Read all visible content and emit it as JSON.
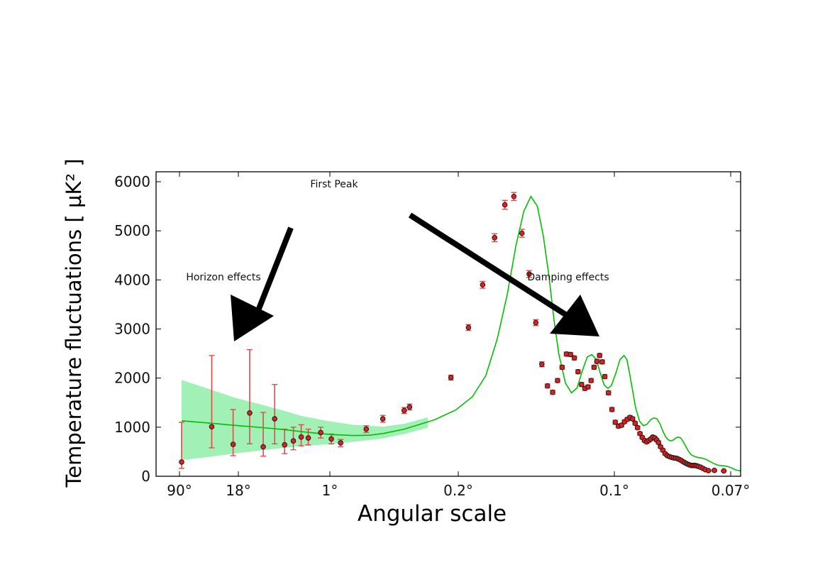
{
  "chart_data": {
    "type": "scatter",
    "xlabel": "Angular scale",
    "ylabel": "Temperature fluctuations [ μK² ]",
    "ylim": [
      0,
      6200
    ],
    "y_ticks": [
      "0",
      "1000",
      "2000",
      "3000",
      "4000",
      "5000",
      "6000"
    ],
    "x_ticks": [
      "90°",
      "18°",
      "1°",
      "0.2°",
      "0.1°",
      "0.07°"
    ],
    "x_scale": "log (multipole, labeled by angular scale)",
    "grid": false,
    "annotations": [
      {
        "text": "First Peak"
      },
      {
        "text": "Horizon effects"
      },
      {
        "text": "Damping effects"
      }
    ],
    "series": [
      {
        "kind": "model_curve",
        "color": "#00c000",
        "points": [
          [
            2,
            1130
          ],
          [
            3,
            1080
          ],
          [
            4,
            1040
          ],
          [
            6,
            990
          ],
          [
            8,
            950
          ],
          [
            10,
            910
          ],
          [
            12,
            880
          ],
          [
            15,
            850
          ],
          [
            20,
            830
          ],
          [
            25,
            835
          ],
          [
            30,
            870
          ],
          [
            40,
            960
          ],
          [
            60,
            1150
          ],
          [
            80,
            1350
          ],
          [
            100,
            1620
          ],
          [
            120,
            2050
          ],
          [
            140,
            2800
          ],
          [
            160,
            3700
          ],
          [
            180,
            4700
          ],
          [
            200,
            5400
          ],
          [
            220,
            5700
          ],
          [
            240,
            5500
          ],
          [
            260,
            4900
          ],
          [
            280,
            4100
          ],
          [
            300,
            3200
          ],
          [
            320,
            2500
          ],
          [
            350,
            1900
          ],
          [
            380,
            1700
          ],
          [
            410,
            1800
          ],
          [
            440,
            2150
          ],
          [
            470,
            2430
          ],
          [
            500,
            2480
          ],
          [
            530,
            2380
          ],
          [
            560,
            2100
          ],
          [
            590,
            1860
          ],
          [
            620,
            1790
          ],
          [
            650,
            1850
          ],
          [
            690,
            2100
          ],
          [
            730,
            2380
          ],
          [
            770,
            2460
          ],
          [
            800,
            2380
          ],
          [
            830,
            2100
          ],
          [
            870,
            1700
          ],
          [
            900,
            1400
          ],
          [
            950,
            1120
          ],
          [
            1000,
            1030
          ],
          [
            1050,
            1060
          ],
          [
            1100,
            1150
          ],
          [
            1150,
            1190
          ],
          [
            1200,
            1170
          ],
          [
            1250,
            1070
          ],
          [
            1300,
            920
          ],
          [
            1350,
            800
          ],
          [
            1400,
            740
          ],
          [
            1450,
            720
          ],
          [
            1500,
            740
          ],
          [
            1550,
            780
          ],
          [
            1600,
            800
          ],
          [
            1650,
            780
          ],
          [
            1700,
            720
          ],
          [
            1750,
            640
          ],
          [
            1800,
            560
          ],
          [
            1850,
            490
          ],
          [
            1900,
            440
          ],
          [
            2000,
            400
          ],
          [
            2100,
            380
          ],
          [
            2200,
            370
          ],
          [
            2300,
            350
          ],
          [
            2400,
            320
          ],
          [
            2500,
            285
          ],
          [
            2600,
            255
          ],
          [
            2700,
            232
          ],
          [
            2800,
            220
          ],
          [
            2900,
            215
          ],
          [
            3000,
            210
          ],
          [
            3100,
            200
          ],
          [
            3200,
            185
          ],
          [
            3300,
            165
          ],
          [
            3400,
            145
          ],
          [
            3500,
            125
          ],
          [
            3700,
            110
          ],
          [
            3900,
            100
          ],
          [
            4100,
            90
          ],
          [
            4300,
            80
          ]
        ]
      },
      {
        "kind": "cosmic_variance_band",
        "color": "#90eeaa",
        "points": [
          [
            2,
            330,
            1960
          ],
          [
            3,
            400,
            1760
          ],
          [
            4,
            460,
            1610
          ],
          [
            6,
            530,
            1450
          ],
          [
            8,
            580,
            1330
          ],
          [
            10,
            610,
            1230
          ],
          [
            14,
            650,
            1130
          ],
          [
            20,
            700,
            1050
          ],
          [
            30,
            770,
            1010
          ],
          [
            40,
            860,
            1070
          ],
          [
            55,
            990,
            1200
          ]
        ]
      },
      {
        "kind": "data_points",
        "color": "#e02020",
        "points": [
          [
            2,
            290,
            160,
            1100
          ],
          [
            3,
            1010,
            580,
            2460
          ],
          [
            4,
            650,
            420,
            1360
          ],
          [
            5,
            1290,
            660,
            2580
          ],
          [
            6,
            600,
            410,
            1300
          ],
          [
            7,
            1170,
            660,
            1870
          ],
          [
            8,
            640,
            460,
            960
          ],
          [
            9,
            720,
            540,
            1000
          ],
          [
            10,
            800,
            620,
            1050
          ],
          [
            11,
            780,
            640,
            960
          ],
          [
            13,
            890,
            780,
            1000
          ],
          [
            15,
            760,
            660,
            860
          ],
          [
            17,
            680,
            600,
            750
          ],
          [
            24,
            960,
            890,
            1030
          ],
          [
            30,
            1170,
            1100,
            1240
          ],
          [
            40,
            1340,
            1280,
            1400
          ],
          [
            43,
            1410,
            1350,
            1470
          ],
          [
            75,
            2010,
            1960,
            2060
          ],
          [
            95,
            3030,
            2970,
            3090
          ],
          [
            115,
            3900,
            3830,
            3970
          ],
          [
            135,
            4860,
            4780,
            4940
          ],
          [
            155,
            5530,
            5440,
            5620
          ],
          [
            175,
            5700,
            5620,
            5780
          ],
          [
            195,
            4950,
            4870,
            5030
          ],
          [
            215,
            4120,
            4050,
            4190
          ],
          [
            235,
            3130,
            3070,
            3190
          ],
          [
            255,
            2280,
            2230,
            2330
          ],
          [
            275,
            1840,
            1800,
            1880
          ],
          [
            295,
            1710,
            1670,
            1750
          ],
          [
            315,
            1950,
            1910,
            1990
          ],
          [
            335,
            2220,
            2180,
            2260
          ],
          [
            355,
            2490,
            2450,
            2530
          ],
          [
            375,
            2480,
            2440,
            2520
          ],
          [
            395,
            2410,
            2370,
            2450
          ],
          [
            415,
            2130,
            2090,
            2170
          ],
          [
            435,
            1870,
            1830,
            1910
          ],
          [
            455,
            1790,
            1750,
            1830
          ],
          [
            475,
            1820,
            1780,
            1860
          ],
          [
            495,
            1950,
            1910,
            1990
          ],
          [
            515,
            2220,
            2180,
            2260
          ],
          [
            535,
            2340,
            2300,
            2380
          ],
          [
            555,
            2460,
            2420,
            2500
          ],
          [
            575,
            2330,
            2290,
            2370
          ],
          [
            595,
            2030,
            1990,
            2070
          ],
          [
            625,
            1700,
            1660,
            1740
          ],
          [
            655,
            1360,
            1320,
            1400
          ],
          [
            685,
            1100,
            1060,
            1140
          ],
          [
            715,
            1020,
            985,
            1055
          ],
          [
            745,
            1040,
            1005,
            1075
          ],
          [
            775,
            1110,
            1075,
            1145
          ],
          [
            805,
            1160,
            1125,
            1195
          ],
          [
            835,
            1200,
            1165,
            1235
          ],
          [
            865,
            1170,
            1135,
            1205
          ],
          [
            895,
            1080,
            1045,
            1115
          ],
          [
            925,
            990,
            955,
            1025
          ],
          [
            955,
            870,
            840,
            900
          ],
          [
            985,
            790,
            760,
            820
          ],
          [
            1015,
            730,
            700,
            760
          ],
          [
            1045,
            700,
            670,
            730
          ],
          [
            1075,
            730,
            700,
            760
          ],
          [
            1105,
            760,
            730,
            790
          ],
          [
            1135,
            800,
            770,
            830
          ],
          [
            1165,
            780,
            750,
            810
          ],
          [
            1195,
            740,
            710,
            770
          ],
          [
            1225,
            690,
            660,
            720
          ],
          [
            1260,
            600,
            575,
            625
          ],
          [
            1300,
            530,
            505,
            555
          ],
          [
            1340,
            460,
            435,
            485
          ],
          [
            1380,
            420,
            398,
            442
          ],
          [
            1420,
            400,
            378,
            422
          ],
          [
            1460,
            385,
            363,
            407
          ],
          [
            1500,
            375,
            353,
            397
          ],
          [
            1540,
            370,
            350,
            390
          ],
          [
            1580,
            360,
            340,
            380
          ],
          [
            1620,
            345,
            325,
            365
          ],
          [
            1660,
            325,
            305,
            345
          ],
          [
            1700,
            300,
            282,
            318
          ],
          [
            1740,
            280,
            262,
            298
          ],
          [
            1780,
            262,
            244,
            280
          ],
          [
            1820,
            245,
            227,
            263
          ],
          [
            1860,
            232,
            214,
            250
          ],
          [
            1900,
            222,
            204,
            240
          ],
          [
            1940,
            220,
            202,
            238
          ],
          [
            1980,
            222,
            204,
            240
          ],
          [
            2020,
            218,
            200,
            236
          ],
          [
            2060,
            210,
            192,
            228
          ],
          [
            2100,
            200,
            182,
            218
          ],
          [
            2160,
            185,
            168,
            202
          ],
          [
            2230,
            160,
            144,
            176
          ],
          [
            2300,
            135,
            120,
            150
          ],
          [
            2400,
            115,
            100,
            130
          ],
          [
            2600,
            120,
            105,
            135
          ],
          [
            2950,
            110,
            95,
            125
          ]
        ]
      }
    ]
  }
}
